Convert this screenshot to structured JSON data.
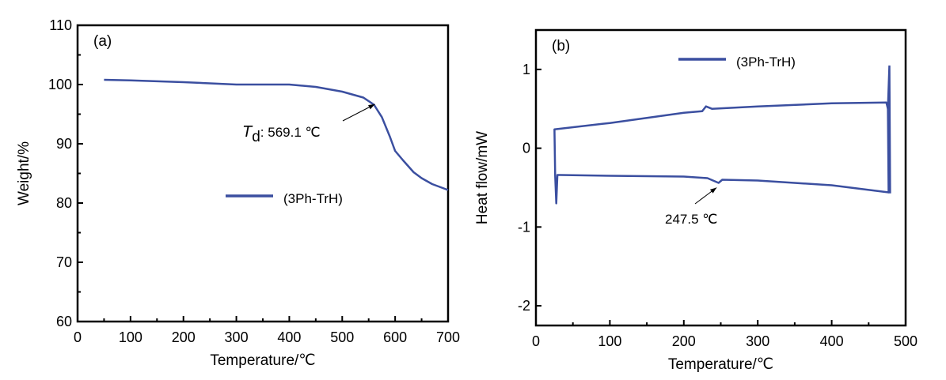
{
  "chart_data": [
    {
      "type": "line",
      "panel_label": "(a)",
      "xlabel": "Temperature/℃",
      "ylabel": "Weight/%",
      "xlim": [
        0,
        700
      ],
      "ylim": [
        60,
        110
      ],
      "xticks": [
        "0",
        "100",
        "200",
        "300",
        "400",
        "500",
        "600",
        "700"
      ],
      "yticks": [
        "60",
        "70",
        "80",
        "90",
        "100",
        "110"
      ],
      "legend": {
        "label": "(3Ph-TrH)",
        "placement": "center-right"
      },
      "annotation": {
        "prefix": "T",
        "subscript": "d",
        "text": ": 569.1 ℃",
        "x": 569.1,
        "y": 96.8
      },
      "series": [
        {
          "name": "(3Ph-TrH)",
          "color": "#3b4fa0",
          "points": [
            [
              50,
              100.8
            ],
            [
              100,
              100.7
            ],
            [
              200,
              100.4
            ],
            [
              300,
              100.0
            ],
            [
              400,
              100.0
            ],
            [
              450,
              99.6
            ],
            [
              500,
              98.8
            ],
            [
              540,
              97.8
            ],
            [
              560,
              96.6
            ],
            [
              575,
              94.5
            ],
            [
              590,
              91.2
            ],
            [
              600,
              88.8
            ],
            [
              615,
              87.2
            ],
            [
              635,
              85.2
            ],
            [
              650,
              84.2
            ],
            [
              670,
              83.2
            ],
            [
              700,
              82.2
            ]
          ]
        }
      ]
    },
    {
      "type": "line",
      "panel_label": "(b)",
      "xlabel": "Temperature/℃",
      "ylabel": "Heat flow/mW",
      "xlim": [
        0,
        500
      ],
      "ylim": [
        -2.25,
        1.5
      ],
      "xticks": [
        "0",
        "100",
        "200",
        "300",
        "400",
        "500"
      ],
      "yticks": [
        "-2",
        "-1",
        "0",
        "1"
      ],
      "legend": {
        "label": "(3Ph-TrH)",
        "placement": "top-center"
      },
      "annotation": {
        "text": "247.5 ℃",
        "x": 247.5,
        "y": -0.44
      },
      "series": [
        {
          "name": "(3Ph-TrH)",
          "color": "#3b4fa0",
          "points": [
            [
              33,
              -0.34
            ],
            [
              100,
              -0.35
            ],
            [
              200,
              -0.36
            ],
            [
              232,
              -0.38
            ],
            [
              247,
              -0.44
            ],
            [
              252,
              -0.4
            ],
            [
              300,
              -0.41
            ],
            [
              400,
              -0.47
            ],
            [
              477,
              -0.56
            ],
            [
              476,
              0.5
            ],
            [
              474,
              0.58
            ],
            [
              400,
              0.57
            ],
            [
              300,
              0.53
            ],
            [
              238,
              0.5
            ],
            [
              230,
              0.53
            ],
            [
              225,
              0.47
            ],
            [
              200,
              0.45
            ],
            [
              100,
              0.32
            ],
            [
              25,
              0.24
            ],
            [
              26,
              -0.35
            ],
            [
              27.5,
              -0.7
            ],
            [
              29,
              -0.34
            ],
            [
              33,
              -0.34
            ]
          ],
          "extra_segment": [
            [
              476,
              0.5
            ],
            [
              478,
              1.05
            ],
            [
              479,
              -0.56
            ],
            [
              477,
              -0.56
            ]
          ]
        }
      ]
    }
  ]
}
